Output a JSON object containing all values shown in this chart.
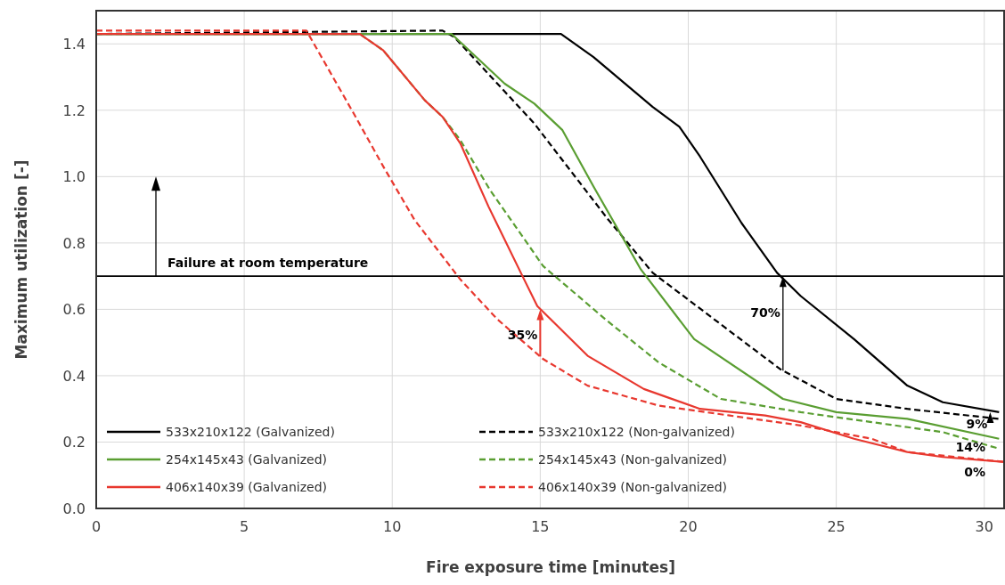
{
  "chart_data": {
    "type": "line",
    "xlabel": "Fire exposure time [minutes]",
    "ylabel": "Maximum utilization [-]",
    "xlim": [
      0,
      30.7
    ],
    "xticks": [
      0,
      5,
      10,
      15,
      20,
      25,
      30
    ],
    "ylim": [
      0,
      1.5
    ],
    "yticks": [
      {
        "value": 0,
        "label": "0.0"
      },
      0.2,
      0.4,
      0.6,
      0.8,
      {
        "value": 1,
        "label": "1.0"
      },
      1.2,
      1.4
    ],
    "grid": true,
    "legend": "bottom",
    "marker": "none",
    "ref_lines": [
      {
        "axis": "y",
        "value": 0.7,
        "label": "Failure at room temperature",
        "color": "#000000"
      }
    ],
    "series": [
      {
        "name": "533x210x122 (Galvanized)",
        "color": "#000000",
        "line_style": "solid",
        "x": [
          0,
          15.7,
          16.8,
          18.8,
          19.7,
          20.4,
          21.8,
          23.0,
          23.8,
          25.6,
          27.4,
          28.6,
          30.5
        ],
        "values": [
          1.43,
          1.43,
          1.36,
          1.21,
          1.15,
          1.06,
          0.86,
          0.71,
          0.64,
          0.51,
          0.37,
          0.32,
          0.29
        ]
      },
      {
        "name": "533x210x122 (Non-galvanized)",
        "color": "#000000",
        "line_style": "dashed",
        "x": [
          0,
          11.7,
          12.1,
          14.8,
          15.4,
          17.3,
          18.8,
          23.1,
          25.0,
          27.4,
          30.5
        ],
        "values": [
          1.43,
          1.44,
          1.42,
          1.16,
          1.09,
          0.87,
          0.71,
          0.42,
          0.33,
          0.3,
          0.27
        ]
      },
      {
        "name": "254x145x43 (Galvanized)",
        "color": "#5a9e32",
        "line_style": "solid",
        "x": [
          0,
          12.0,
          13.8,
          14.8,
          15.75,
          16.8,
          18.4,
          20.2,
          23.2,
          25.0,
          27.4,
          30.5
        ],
        "values": [
          1.43,
          1.43,
          1.28,
          1.22,
          1.14,
          0.97,
          0.72,
          0.51,
          0.33,
          0.29,
          0.27,
          0.21
        ]
      },
      {
        "name": "254x145x43 (Non-galvanized)",
        "color": "#5a9e32",
        "line_style": "dashed",
        "x": [
          0,
          8.9,
          9.7,
          11.1,
          11.7,
          12.3,
          13.3,
          15.1,
          17.2,
          19.0,
          21.1,
          23.8,
          26.2,
          28.6,
          30.5
        ],
        "values": [
          1.43,
          1.43,
          1.38,
          1.23,
          1.18,
          1.11,
          0.96,
          0.73,
          0.57,
          0.44,
          0.33,
          0.29,
          0.26,
          0.23,
          0.18
        ]
      },
      {
        "name": "406x140x39 (Galvanized)",
        "color": "#e8382f",
        "line_style": "solid",
        "x": [
          0,
          8.9,
          9.7,
          11.1,
          11.7,
          12.3,
          13.25,
          14.4,
          14.9,
          16.6,
          18.5,
          20.4,
          22.6,
          23.8,
          25.6,
          27.4,
          28.6,
          30.7
        ],
        "values": [
          1.43,
          1.43,
          1.38,
          1.23,
          1.18,
          1.1,
          0.91,
          0.7,
          0.61,
          0.46,
          0.36,
          0.3,
          0.28,
          0.26,
          0.21,
          0.17,
          0.155,
          0.14
        ]
      },
      {
        "name": "406x140x39 (Non-galvanized)",
        "color": "#e8382f",
        "line_style": "dashed",
        "x": [
          0,
          7.1,
          8.7,
          9.7,
          10.75,
          12.3,
          13.55,
          15.1,
          16.6,
          19.0,
          21.4,
          23.8,
          26.2,
          27.4,
          30.7
        ],
        "values": [
          1.44,
          1.44,
          1.19,
          1.03,
          0.87,
          0.69,
          0.57,
          0.45,
          0.37,
          0.31,
          0.28,
          0.25,
          0.21,
          0.17,
          0.14
        ]
      }
    ],
    "annotations": [
      {
        "text": "35%",
        "x": 15,
        "y": 0.6
      },
      {
        "text": "70%",
        "x": 23.2,
        "y": 0.7
      },
      {
        "text": "9%",
        "x": 30.2,
        "y": 0.29
      },
      "14%",
      "0%"
    ]
  }
}
